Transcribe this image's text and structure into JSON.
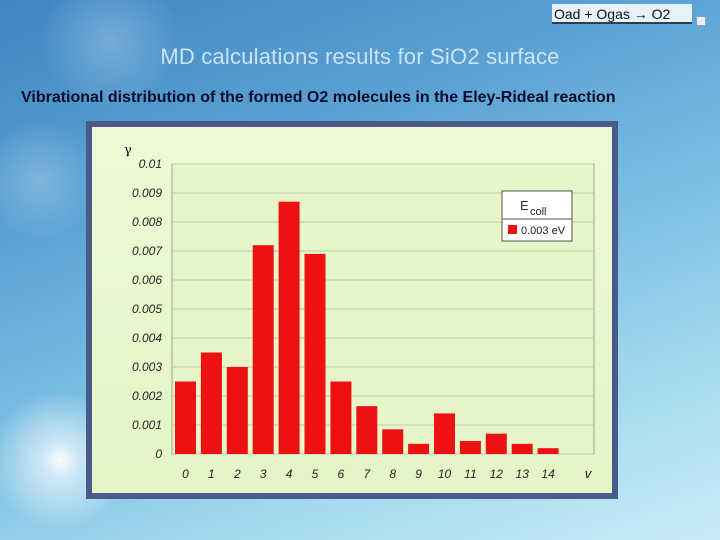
{
  "header": {
    "corner_label": "Oad + Ogas → O2",
    "title": "MD calculations results for SiO2 surface",
    "subtitle": "Vibrational distribution of the formed O2 molecules in the Eley-Rideal reaction"
  },
  "colors": {
    "bar": "#ee1111",
    "plot_background": "#e6f6c8",
    "frame": "#4a5a8a"
  },
  "chart_data": {
    "type": "bar",
    "title": "",
    "xlabel": "v",
    "ylabel": "γ",
    "categories": [
      "0",
      "1",
      "2",
      "3",
      "4",
      "5",
      "6",
      "7",
      "8",
      "9",
      "10",
      "11",
      "12",
      "13",
      "14"
    ],
    "series": [
      {
        "name": "0.003 eV",
        "values": [
          0.0025,
          0.0035,
          0.003,
          0.0072,
          0.0087,
          0.0069,
          0.0025,
          0.00165,
          0.00085,
          0.00035,
          0.0014,
          0.00045,
          0.0007,
          0.00035,
          0.0002
        ]
      }
    ],
    "ylim": [
      0,
      0.01
    ],
    "yticks": [
      "0",
      "0.001",
      "0.002",
      "0.003",
      "0.004",
      "0.005",
      "0.006",
      "0.007",
      "0.008",
      "0.009",
      "0.01"
    ],
    "grid": true,
    "legend": {
      "title_main": "E",
      "title_sub": "coll",
      "placement": "top-right"
    }
  }
}
